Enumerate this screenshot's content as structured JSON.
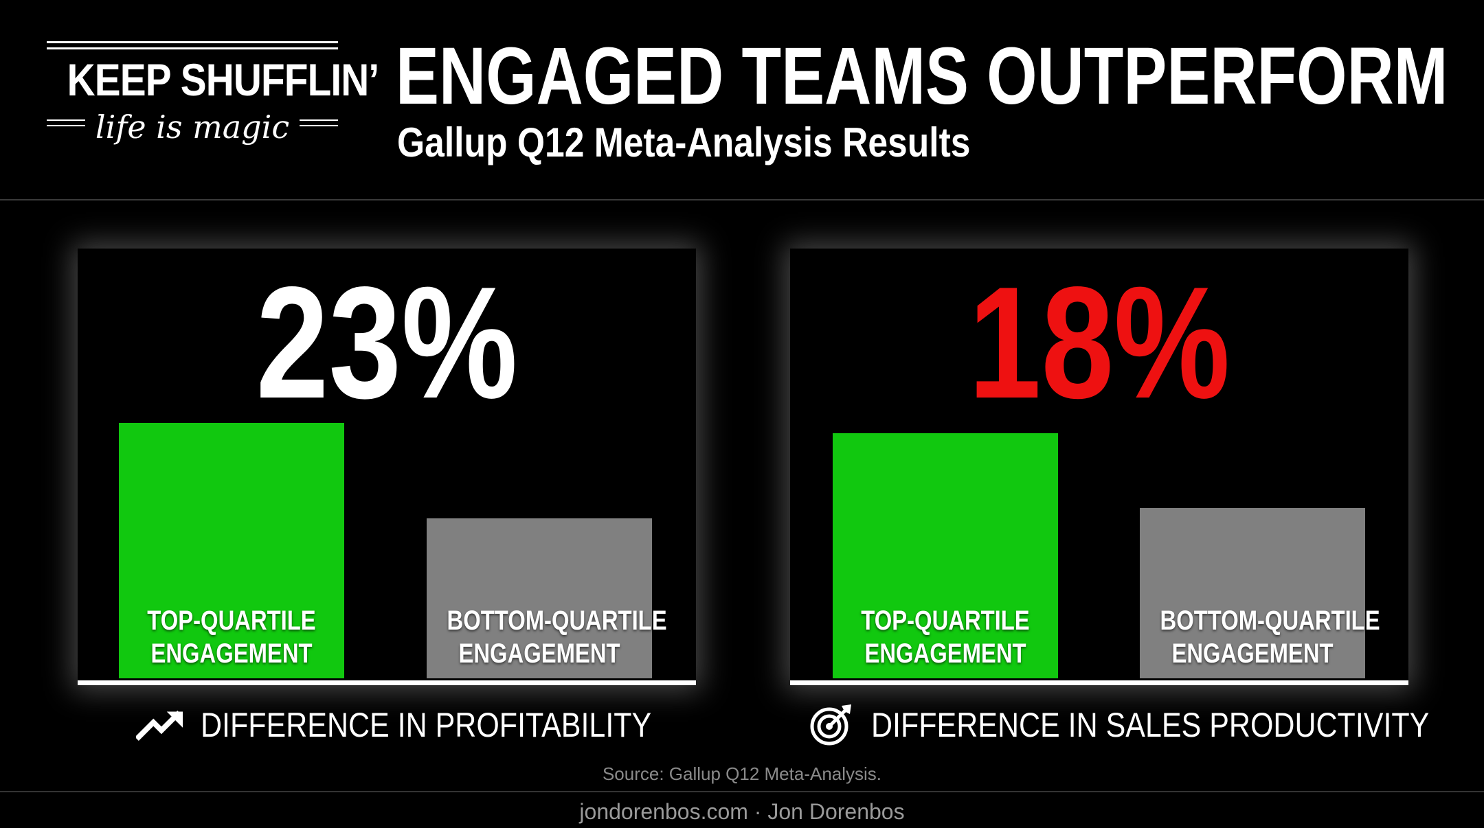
{
  "logo": {
    "brand": "KEEP SHUFFLIN’",
    "tagline": "life is magic"
  },
  "header": {
    "title": "ENGAGED TEAMS OUTPERFORM",
    "subtitle": "Gallup Q12 Meta-Analysis Results"
  },
  "colors": {
    "top_quartile": "#11c80f",
    "bottom_quartile": "#808080",
    "highlight_red": "#ee1111",
    "background": "#000000"
  },
  "chart_data": [
    {
      "type": "bar",
      "headline": "23%",
      "headline_color": "#ffffff",
      "categories": [
        "TOP-QUARTILE ENGAGEMENT",
        "BOTTOM-QUARTILE ENGAGEMENT"
      ],
      "category_lines": [
        [
          "TOP-QUARTILE",
          "ENGAGEMENT"
        ],
        [
          "BOTTOM-QUARTILE",
          "ENGAGEMENT"
        ]
      ],
      "values": [
        123,
        77
      ],
      "bar_colors": [
        "#11c80f",
        "#808080"
      ],
      "caption": "DIFFERENCE IN PROFITABILITY",
      "icon": "trending-up-icon"
    },
    {
      "type": "bar",
      "headline": "18%",
      "headline_color": "#ee1111",
      "categories": [
        "TOP-QUARTILE ENGAGEMENT",
        "BOTTOM-QUARTILE ENGAGEMENT"
      ],
      "category_lines": [
        [
          "TOP-QUARTILE",
          "ENGAGEMENT"
        ],
        [
          "BOTTOM-QUARTILE",
          "ENGAGEMENT"
        ]
      ],
      "values": [
        118,
        82
      ],
      "bar_colors": [
        "#11c80f",
        "#808080"
      ],
      "caption": "DIFFERENCE IN SALES PRODUCTIVITY",
      "icon": "target-icon"
    }
  ],
  "source": "Source: Gallup Q12 Meta-Analysis.",
  "footer": "jondorenbos.com · Jon Dorenbos"
}
